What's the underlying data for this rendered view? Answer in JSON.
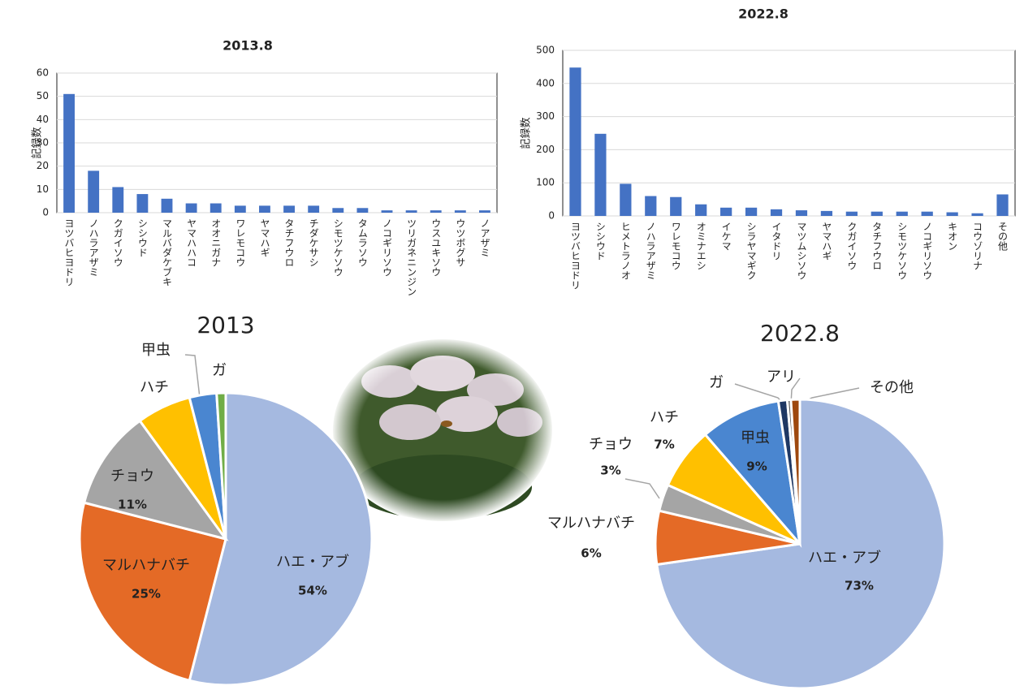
{
  "chart_data": [
    {
      "type": "bar",
      "title": "2013.8",
      "y_label": "記録数",
      "categories": [
        "ヨツバヒヨドリ",
        "ノハラアザミ",
        "クガイソウ",
        "シシウド",
        "マルバダケブキ",
        "ヤマハハコ",
        "オオニガナ",
        "ワレモコウ",
        "ヤマハギ",
        "タチフウロ",
        "チダケサシ",
        "シモツケソウ",
        "タムラソウ",
        "ノコギリソウ",
        "ツリガネニンジン",
        "ウスユキソウ",
        "ウツボグサ",
        "ノアザミ"
      ],
      "values": [
        51,
        18,
        11,
        8,
        6,
        4,
        4,
        3,
        3,
        3,
        3,
        2,
        2,
        1,
        1,
        1,
        1,
        1
      ],
      "color": "#4472c4",
      "ylim": [
        0,
        60
      ],
      "yticks": [
        0,
        10,
        20,
        30,
        40,
        50,
        60
      ],
      "grid": true
    },
    {
      "type": "bar",
      "title": "2022.8",
      "y_label": "記録数",
      "categories": [
        "ヨツバヒヨドリ",
        "シシウド",
        "ヒメトラノオ",
        "ノハラアザミ",
        "ワレモコウ",
        "オミナエシ",
        "イケマ",
        "シラヤマギク",
        "イタドリ",
        "マツムシソウ",
        "ヤマハギ",
        "クガイソウ",
        "タチフウロ",
        "シモツケソウ",
        "ノコギリソウ",
        "キオン",
        "コウゾリナ",
        "その他"
      ],
      "values": [
        448,
        248,
        97,
        60,
        57,
        35,
        25,
        25,
        20,
        17,
        15,
        13,
        13,
        13,
        13,
        11,
        8,
        65
      ],
      "color": "#4472c4",
      "ylim": [
        0,
        500
      ],
      "yticks": [
        0,
        100,
        200,
        300,
        400,
        500
      ],
      "grid": true
    },
    {
      "type": "pie",
      "title": "2013",
      "categories": [
        "ハエ・アブ",
        "マルハナバチ",
        "チョウ",
        "ハチ",
        "甲虫",
        "ガ"
      ],
      "values": [
        54,
        25,
        11,
        6,
        3,
        1
      ],
      "value_labels": [
        "54%",
        "25%",
        "11%",
        null,
        null,
        null
      ],
      "colors": [
        "#a5b9e0",
        "#e46a26",
        "#a5a5a5",
        "#ffc000",
        "#4a86d0",
        "#70ad47"
      ]
    },
    {
      "type": "pie",
      "title": "2022.8",
      "categories": [
        "ハエ・アブ",
        "マルハナバチ",
        "チョウ",
        "ハチ",
        "甲虫",
        "ガ",
        "アリ",
        "その他"
      ],
      "values": [
        73,
        6,
        3,
        7,
        9,
        1,
        0.4,
        1
      ],
      "value_labels": [
        "73%",
        "6%",
        "3%",
        "7%",
        "9%",
        null,
        null,
        null
      ],
      "colors": [
        "#a5b9e0",
        "#e46a26",
        "#a5a5a5",
        "#ffc000",
        "#4a86d0",
        "#1f3864",
        "#5a5a5a",
        "#9e480e"
      ]
    }
  ]
}
